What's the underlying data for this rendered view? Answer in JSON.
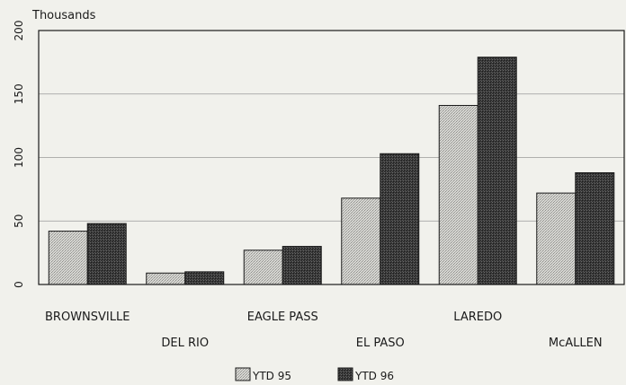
{
  "chart_data": {
    "type": "bar",
    "title": "",
    "xlabel": "",
    "ylabel": "Thousands",
    "ylim": [
      0,
      200
    ],
    "yticks": [
      0,
      50,
      100,
      150,
      200
    ],
    "categories": [
      "BROWNSVILLE",
      "DEL RIO",
      "EAGLE PASS",
      "EL PASO",
      "LAREDO",
      "McALLEN"
    ],
    "series": [
      {
        "name": "YTD 95",
        "values": [
          42,
          9,
          27,
          68,
          141,
          72
        ],
        "pattern": "light"
      },
      {
        "name": "YTD 96",
        "values": [
          48,
          10,
          30,
          103,
          179,
          88
        ],
        "pattern": "dark"
      }
    ],
    "grid": true,
    "legend": "bottom-center",
    "colors": {
      "light_fill": "#cfcfcb",
      "dark_fill": "#3c3c3c",
      "axis": "#1a1a1a",
      "grid": "#9a9a98",
      "background": "#f1f1ec"
    }
  }
}
